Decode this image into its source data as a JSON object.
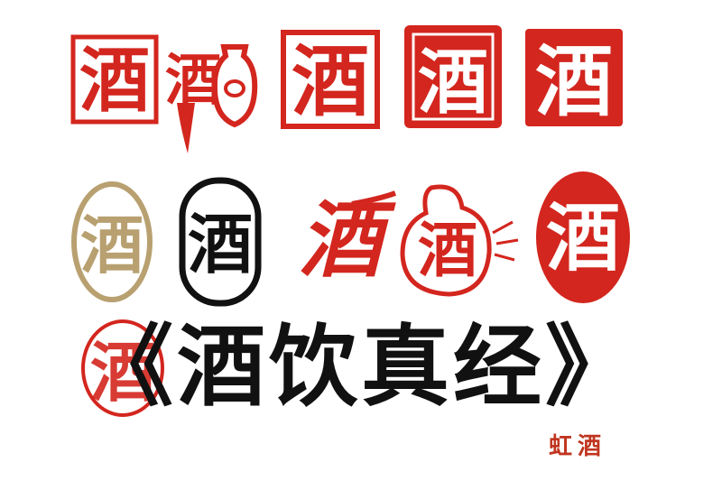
{
  "seals": [
    {
      "char": "酒",
      "style": "red-relief-rect"
    },
    {
      "char": "酒",
      "style": "red-brush-wine-jar"
    },
    {
      "char": "酒",
      "style": "red-relief-rect"
    },
    {
      "char": "酒",
      "style": "red-solid-square"
    },
    {
      "char": "酒",
      "style": "red-solid-square"
    },
    {
      "char": "酒",
      "style": "gold-oval"
    },
    {
      "char": "酒",
      "style": "black-oval"
    },
    {
      "char": "酒",
      "style": "red-brush-script"
    },
    {
      "char": "酒",
      "style": "red-gourd"
    },
    {
      "char": "酒",
      "style": "red-solid-oval"
    }
  ],
  "title": {
    "left_bracket": "《",
    "text": "酒饮真经",
    "right_bracket": "》"
  },
  "title_stamp_char": "酒",
  "signature": "虹酒",
  "colors": {
    "seal_red": "#d3261e",
    "gold": "#b8a070",
    "black": "#111111",
    "signature": "#c0351f"
  }
}
